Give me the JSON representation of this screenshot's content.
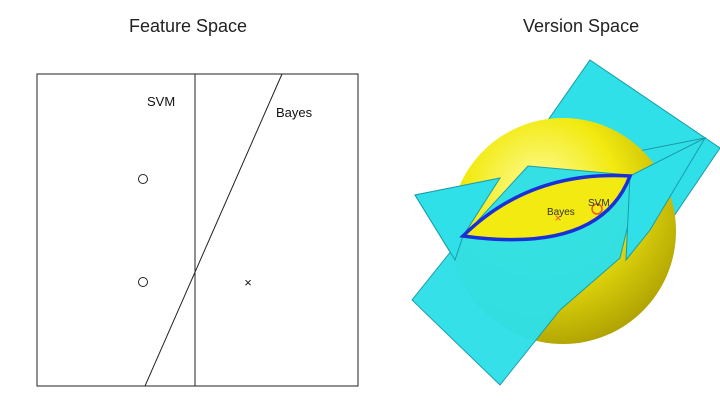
{
  "feature_space": {
    "title": "Feature Space",
    "svm_label": "SVM",
    "bayes_label": "Bayes",
    "cross_symbol": "×"
  },
  "version_space": {
    "title": "Version Space",
    "svm_label": "SVM",
    "bayes_label": "Bayes",
    "colors": {
      "sphere": "#e8e000",
      "planes": "#2fe0e8",
      "intersection_outline": "#1a2fd6",
      "markers": "#e85a2a"
    }
  }
}
